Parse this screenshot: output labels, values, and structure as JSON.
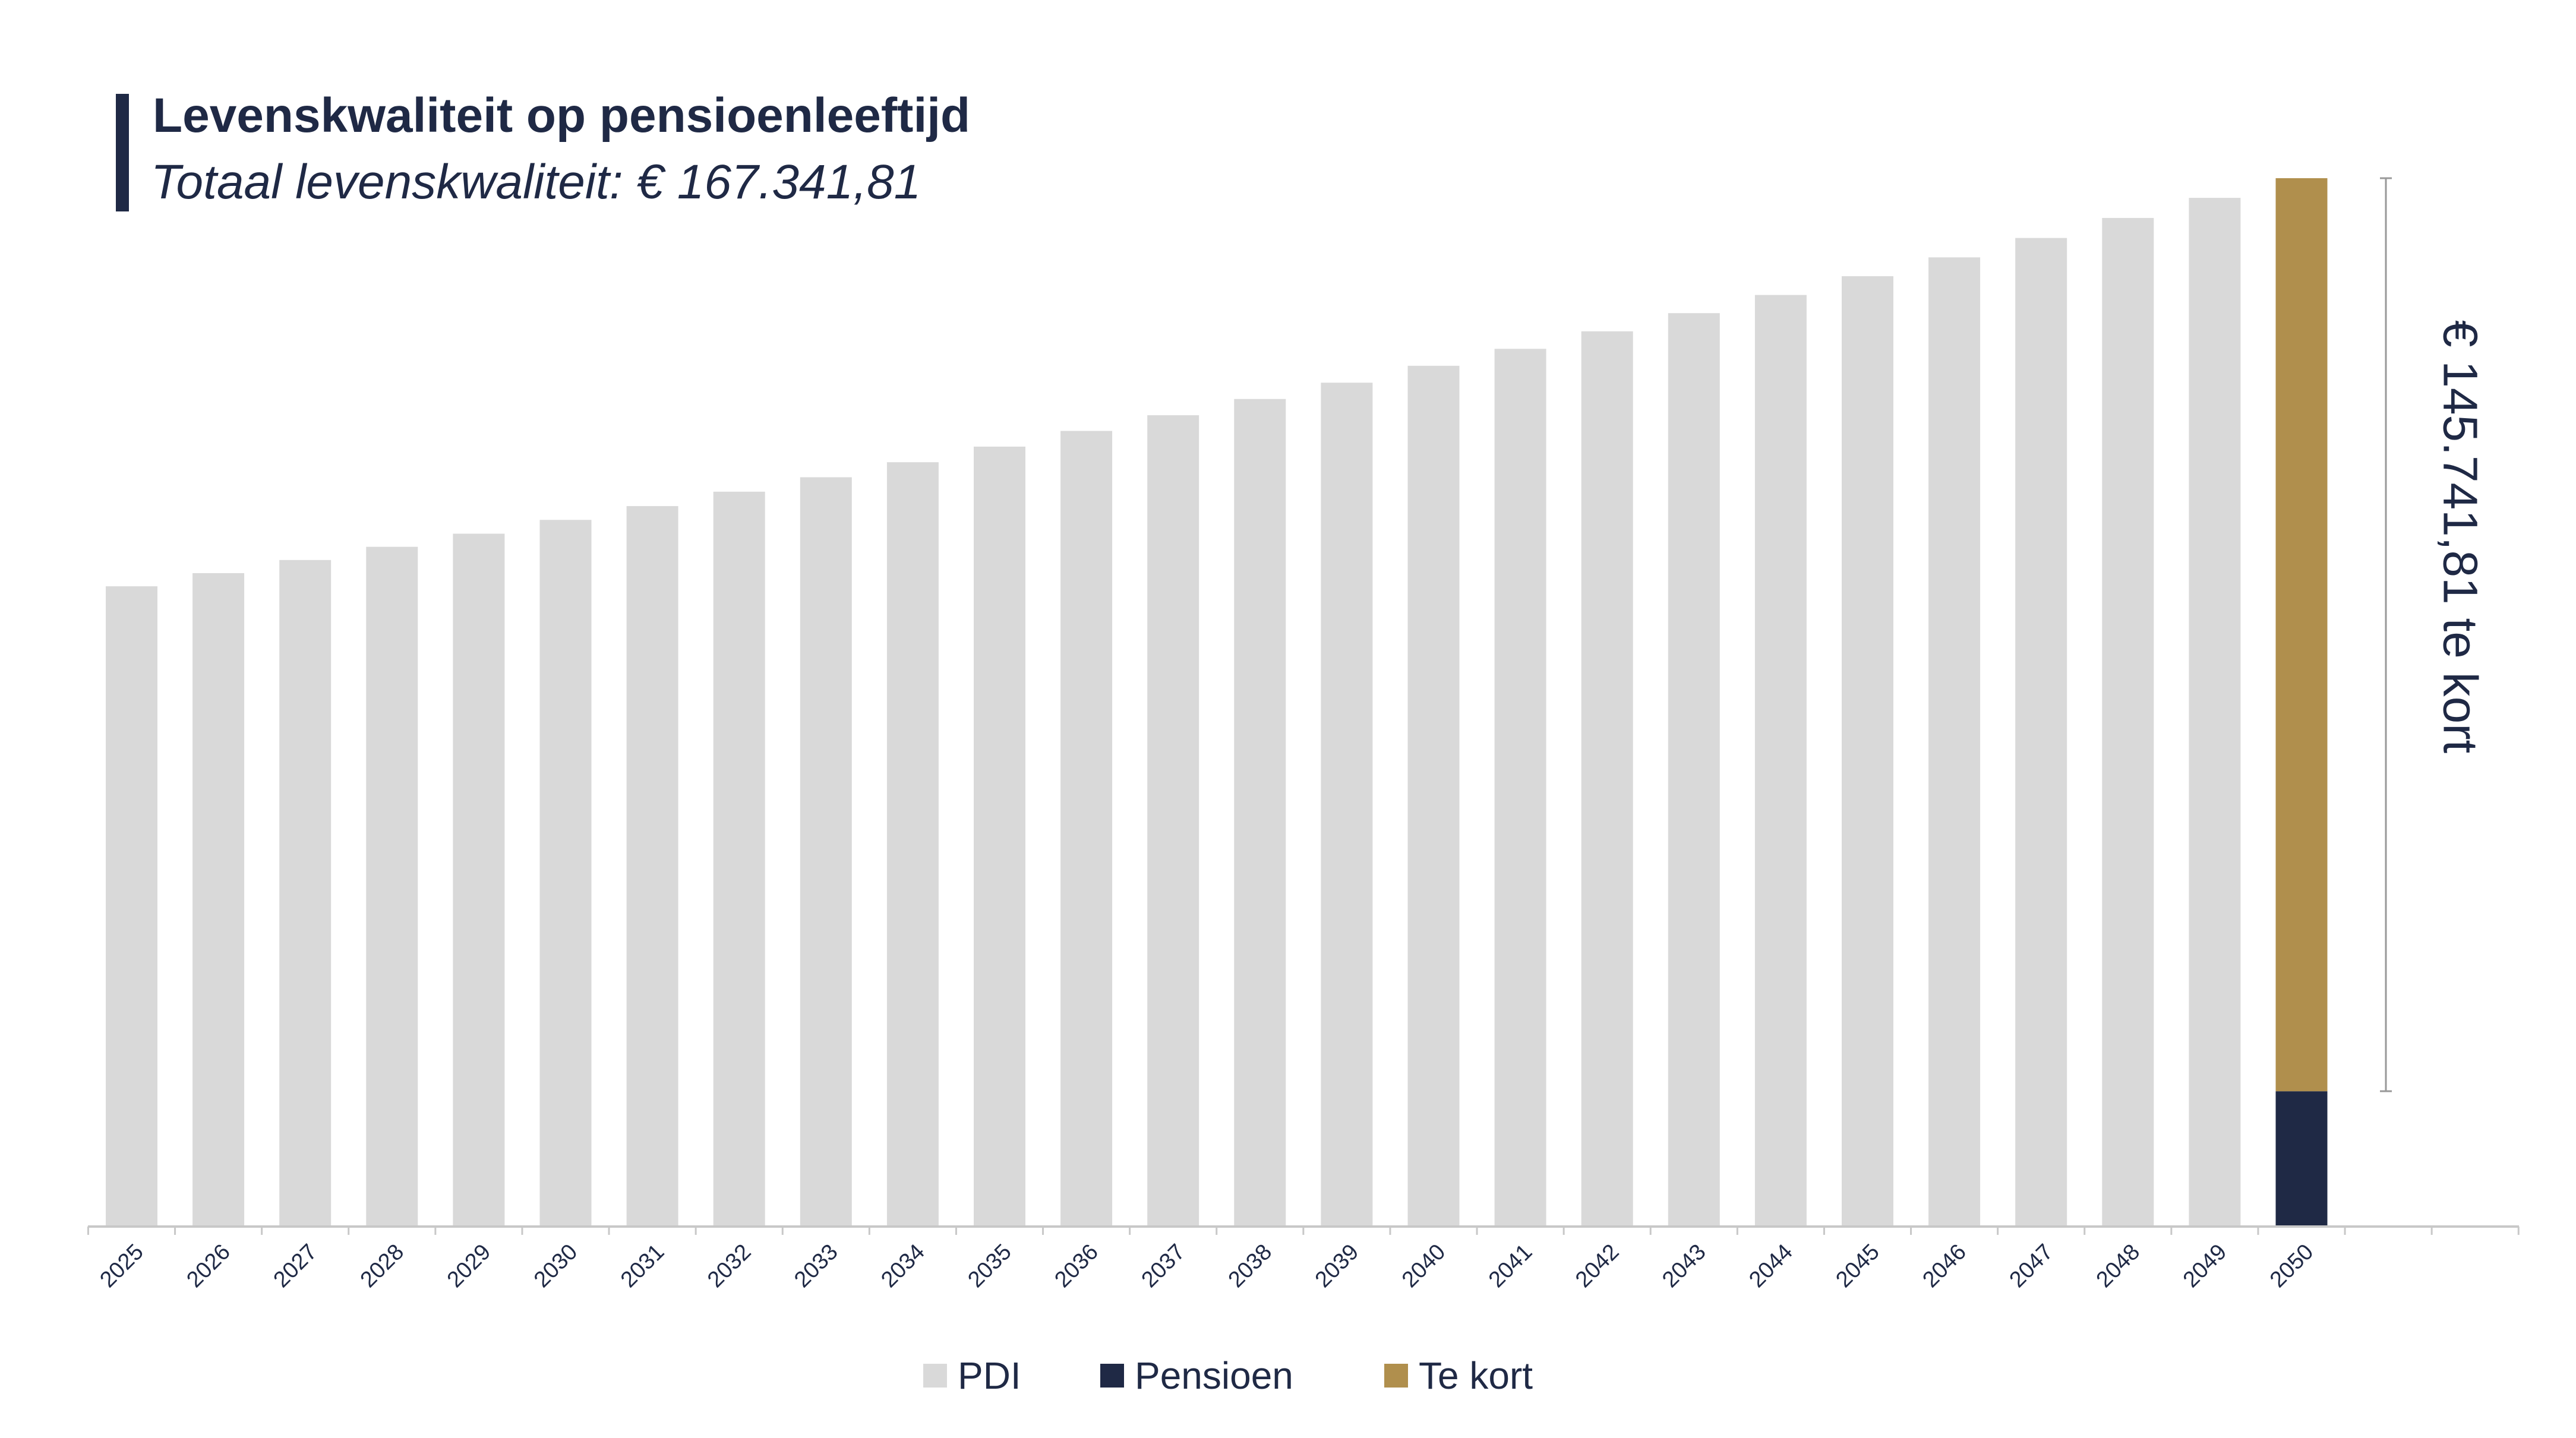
{
  "title": "Levenskwaliteit op pensioenleeftijd",
  "subtitle": "Totaal levenskwaliteit: € 167.341,81",
  "colors": {
    "pdi": "#d9d9d9",
    "pensioen": "#1f2945",
    "te_kort": "#b08f4d",
    "text": "#1f2945",
    "axis": "#c8c8c8"
  },
  "chart_data": {
    "type": "bar",
    "categories": [
      "2025",
      "2026",
      "2027",
      "2028",
      "2029",
      "2030",
      "2031",
      "2032",
      "2033",
      "2034",
      "2035",
      "2036",
      "2037",
      "2038",
      "2039",
      "2040",
      "2041",
      "2042",
      "2043",
      "2044",
      "2045",
      "2046",
      "2047",
      "2048",
      "2049",
      "2050"
    ],
    "series": [
      {
        "name": "PDI",
        "values": [
          102200,
          104300,
          106400,
          108500,
          110600,
          112800,
          115000,
          117300,
          119600,
          122000,
          124500,
          127000,
          129500,
          132100,
          134700,
          137400,
          140100,
          142900,
          145800,
          148700,
          151700,
          154700,
          157800,
          161000,
          164200,
          0
        ]
      },
      {
        "name": "Pensioen",
        "values": [
          0,
          0,
          0,
          0,
          0,
          0,
          0,
          0,
          0,
          0,
          0,
          0,
          0,
          0,
          0,
          0,
          0,
          0,
          0,
          0,
          0,
          0,
          0,
          0,
          0,
          21600
        ]
      },
      {
        "name": "Te kort",
        "values": [
          0,
          0,
          0,
          0,
          0,
          0,
          0,
          0,
          0,
          0,
          0,
          0,
          0,
          0,
          0,
          0,
          0,
          0,
          0,
          0,
          0,
          0,
          0,
          0,
          0,
          145741.81
        ]
      }
    ],
    "stacked": true,
    "ylim": [
      0,
      167341.81
    ],
    "legend": [
      "PDI",
      "Pensioen",
      "Te kort"
    ],
    "legend_position": "bottom-center",
    "annotation": "€ 145.741,81 te kort",
    "grid": false
  }
}
